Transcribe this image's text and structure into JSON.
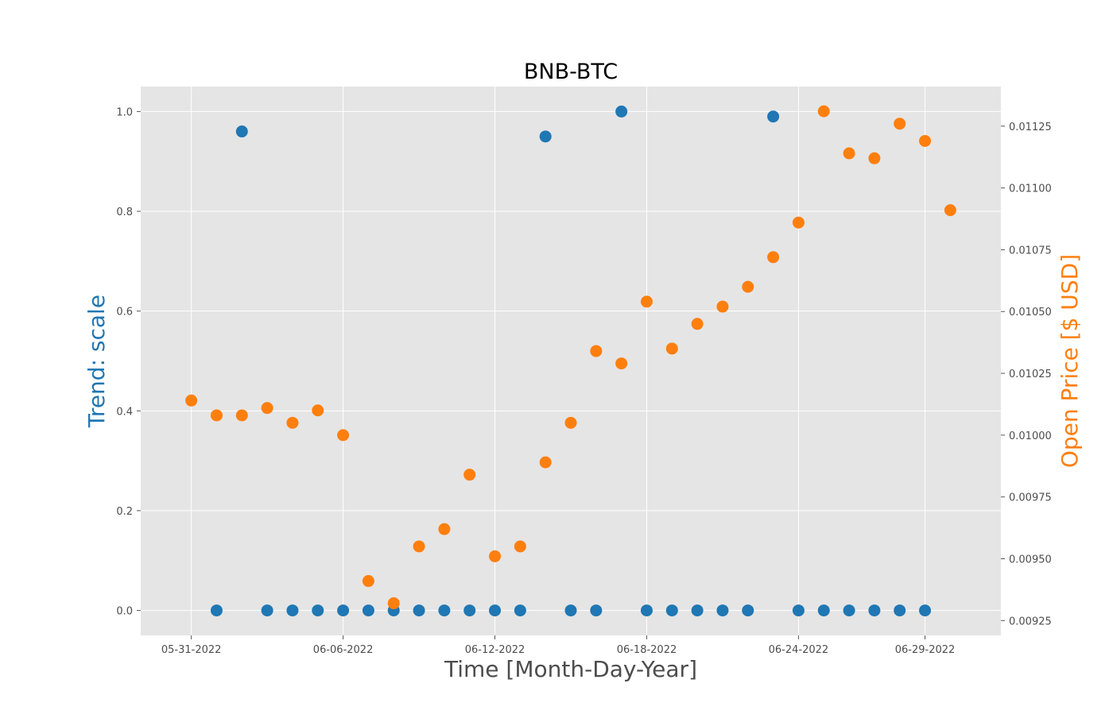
{
  "chart_data": {
    "type": "scatter",
    "title": "BNB-BTC",
    "xlabel": "Time [Month-Day-Year]",
    "ylabel_left": "Trend: scale",
    "ylabel_right": "Open Price [$ USD]",
    "grid": true,
    "x_ticks": [
      "05-31-2022",
      "06-06-2022",
      "06-12-2022",
      "06-18-2022",
      "06-24-2022",
      "06-29-2022"
    ],
    "y_left_ticks": [
      "0.0",
      "0.2",
      "0.4",
      "0.6",
      "0.8",
      "1.0"
    ],
    "y_right_ticks": [
      "0.00925",
      "0.00950",
      "0.00975",
      "0.01000",
      "0.01025",
      "0.01050",
      "0.01075",
      "0.01100",
      "0.01125"
    ],
    "ylim_left": [
      -0.05,
      1.05
    ],
    "ylim_right": [
      0.00919,
      0.01141
    ],
    "xlim": [
      "05-29-2022",
      "07-02-2022"
    ],
    "colors": {
      "trend": "#1f77b4",
      "price": "#ff7f0e",
      "background": "#e5e5e5",
      "grid": "#ffffff"
    },
    "series": [
      {
        "axis": "left",
        "color": "#1f77b4",
        "x": [
          "06-01-2022",
          "06-02-2022",
          "06-03-2022",
          "06-04-2022",
          "06-05-2022",
          "06-06-2022",
          "06-07-2022",
          "06-08-2022",
          "06-09-2022",
          "06-10-2022",
          "06-11-2022",
          "06-12-2022",
          "06-13-2022",
          "06-14-2022",
          "06-15-2022",
          "06-16-2022",
          "06-17-2022",
          "06-18-2022",
          "06-19-2022",
          "06-20-2022",
          "06-21-2022",
          "06-22-2022",
          "06-23-2022",
          "06-24-2022",
          "06-25-2022",
          "06-26-2022",
          "06-27-2022",
          "06-28-2022",
          "06-29-2022"
        ],
        "y": [
          0.0,
          0.96,
          0.0,
          0.0,
          0.0,
          0.0,
          0.0,
          0.0,
          0.0,
          0.0,
          0.0,
          0.0,
          0.0,
          0.95,
          0.0,
          0.0,
          1.0,
          0.0,
          0.0,
          0.0,
          0.0,
          0.0,
          0.99,
          0.0,
          0.0,
          0.0,
          0.0,
          0.0,
          0.0
        ]
      },
      {
        "axis": "right",
        "color": "#ff7f0e",
        "x": [
          "05-31-2022",
          "06-01-2022",
          "06-02-2022",
          "06-03-2022",
          "06-04-2022",
          "06-05-2022",
          "06-06-2022",
          "06-07-2022",
          "06-08-2022",
          "06-09-2022",
          "06-10-2022",
          "06-11-2022",
          "06-12-2022",
          "06-13-2022",
          "06-14-2022",
          "06-15-2022",
          "06-16-2022",
          "06-17-2022",
          "06-18-2022",
          "06-19-2022",
          "06-20-2022",
          "06-21-2022",
          "06-22-2022",
          "06-23-2022",
          "06-24-2022",
          "06-25-2022",
          "06-26-2022",
          "06-27-2022",
          "06-28-2022",
          "06-29-2022",
          "06-30-2022"
        ],
        "y": [
          0.01014,
          0.01008,
          0.01008,
          0.01011,
          0.01005,
          0.0101,
          0.01,
          0.00941,
          0.00932,
          0.00955,
          0.00962,
          0.00984,
          0.00951,
          0.00955,
          0.00989,
          0.01005,
          0.01034,
          0.01029,
          0.01054,
          0.01035,
          0.01045,
          0.01052,
          0.0106,
          0.01072,
          0.01086,
          0.01131,
          0.01114,
          0.01112,
          0.01126,
          0.01119,
          0.01091
        ]
      }
    ]
  }
}
